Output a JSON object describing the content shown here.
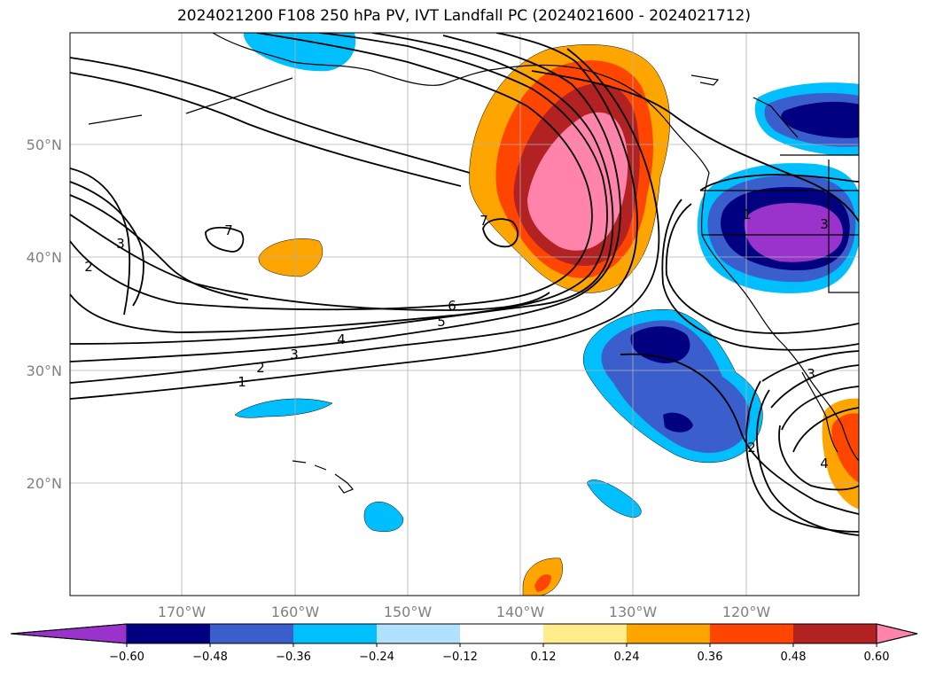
{
  "title": "2024021200 F108 250 hPa PV, IVT Landfall PC (2024021600 - 2024021712)",
  "lat_labels": [
    "50°N",
    "40°N",
    "30°N",
    "20°N"
  ],
  "lon_labels": [
    "170°W",
    "160°W",
    "150°W",
    "140°W",
    "130°W",
    "120°W"
  ],
  "colorbar": {
    "colors": [
      "#9933cc",
      "#000080",
      "#3a5fcd",
      "#00bfff",
      "#b0e2ff",
      "#ffffff",
      "#ffec8b",
      "#ffa500",
      "#ff4500",
      "#b22222",
      "#ff83aa"
    ],
    "tick_labels": [
      "−0.60",
      "−0.48",
      "−0.36",
      "−0.24",
      "−0.12",
      "0.12",
      "0.24",
      "0.36",
      "0.48",
      "0.60"
    ]
  },
  "pv_contour_labels": [
    "1",
    "2",
    "3",
    "4",
    "5",
    "6",
    "7",
    "2",
    "3",
    "7",
    "1",
    "3",
    "2",
    "4",
    "3"
  ]
}
